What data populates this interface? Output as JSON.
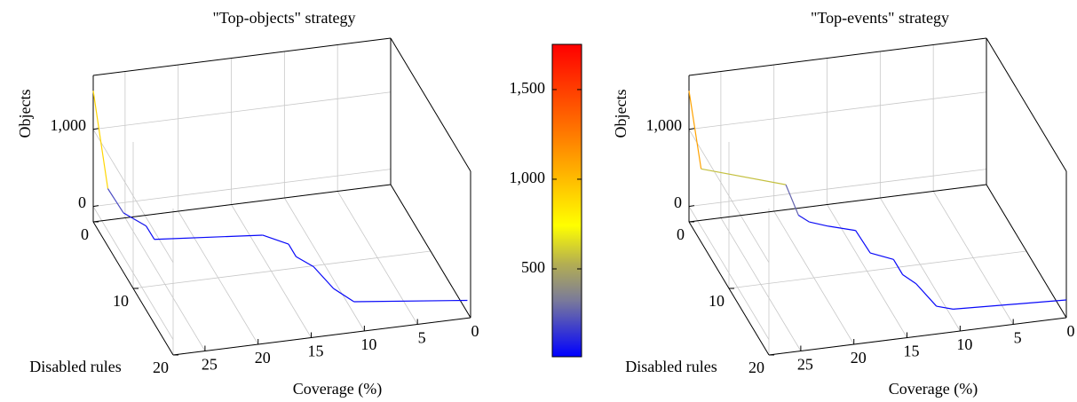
{
  "chart_data": [
    {
      "type": "line3d",
      "title": "\"Top-objects\" strategy",
      "x_label": "Coverage (%)",
      "y_label": "Disabled rules",
      "z_label": "Objects",
      "xlim": [
        28,
        0
      ],
      "ylim": [
        0,
        20
      ],
      "zlim": [
        -200,
        1700
      ],
      "xticks": [
        0,
        5,
        10,
        15,
        20,
        25
      ],
      "yticks": [
        0,
        10,
        20
      ],
      "zticks": [
        0,
        {
          "value": 1000,
          "label": "1,000"
        }
      ],
      "grid": true,
      "series": [
        {
          "x": [
            28,
            27,
            26.1,
            24.6,
            24.5,
            14.8,
            13,
            13,
            12,
            11.4,
            10.3,
            0.3
          ],
          "y": [
            0,
            1,
            2.5,
            4.2,
            6,
            7.3,
            9,
            10.9,
            12.6,
            16,
            18.2,
            20
          ],
          "z": [
            1500,
            300,
            100,
            50,
            30,
            30,
            30,
            30,
            30,
            30,
            30,
            30
          ]
        }
      ]
    },
    {
      "type": "line3d",
      "title": "\"Top-events\" strategy",
      "x_label": "Coverage (%)",
      "y_label": "Disabled rules",
      "z_label": "Objects",
      "xlim": [
        28,
        0
      ],
      "ylim": [
        0,
        20
      ],
      "zlim": [
        -200,
        1700
      ],
      "xticks": [
        0,
        5,
        10,
        15,
        20,
        25
      ],
      "yticks": [
        0,
        10,
        20
      ],
      "zticks": [
        0,
        {
          "value": 1000,
          "label": "1,000"
        }
      ],
      "grid": true,
      "series": [
        {
          "x": [
            28,
            27.8,
            20.2,
            19.2,
            18.5,
            17,
            14.8,
            14.7,
            13,
            13,
            12.3,
            11.7,
            10.4,
            0
          ],
          "y": [
            0,
            2.5,
            3.5,
            4,
            4.8,
            5.5,
            6.6,
            10,
            11.3,
            13.6,
            15.1,
            18.6,
            19.3,
            20
          ],
          "z": [
            1500,
            700,
            450,
            80,
            50,
            30,
            30,
            30,
            30,
            30,
            30,
            30,
            30,
            30
          ]
        }
      ]
    },
    {
      "type": "colorbar",
      "lim": [
        10,
        1752
      ],
      "ticks": [
        500,
        {
          "value": 1000,
          "label": "1,000"
        },
        {
          "value": 1500,
          "label": "1,500"
        }
      ]
    }
  ]
}
